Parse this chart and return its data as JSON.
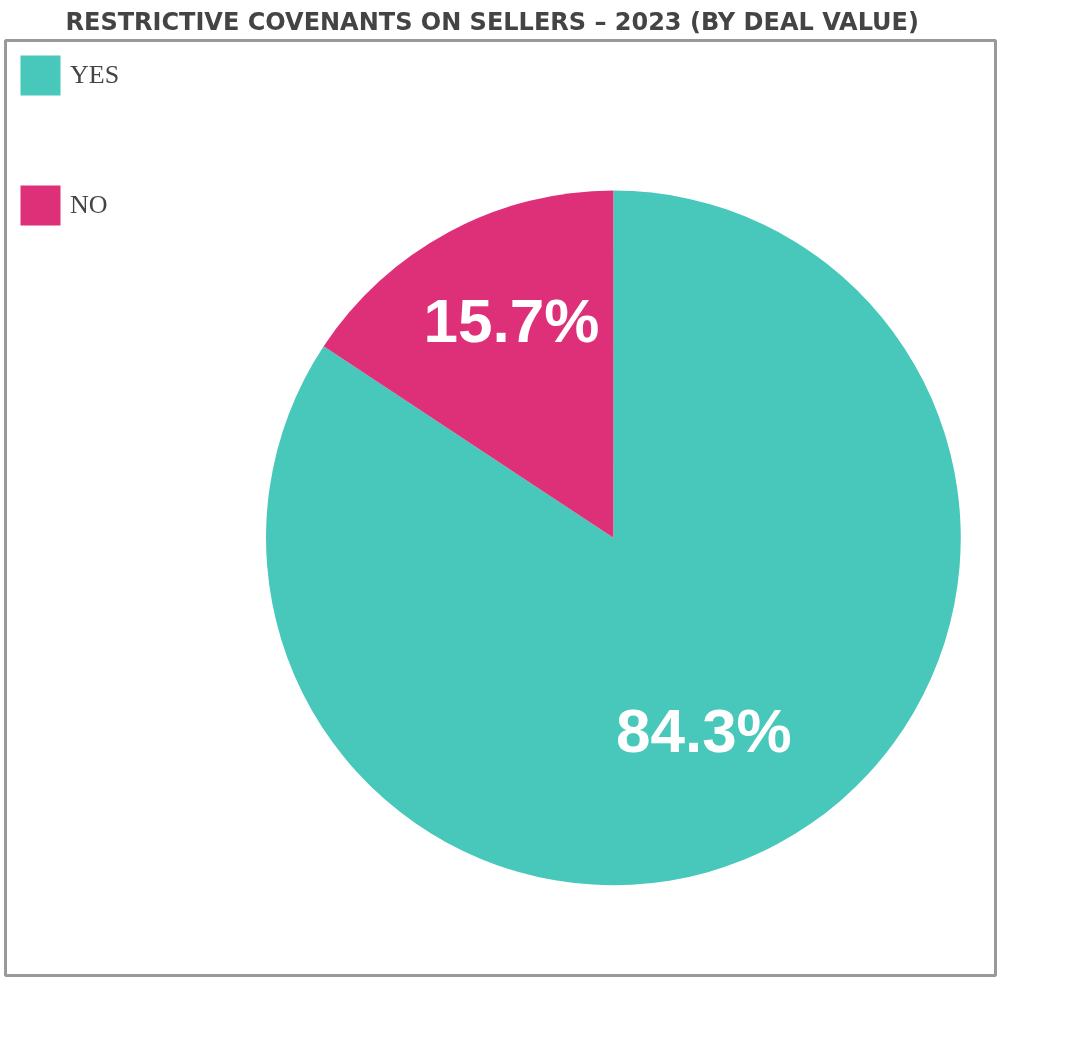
{
  "chart_data": {
    "type": "pie",
    "title": "RESTRICTIVE COVENANTS ON SELLERS – 2023 (BY DEAL VALUE)",
    "categories": [
      "YES",
      "NO"
    ],
    "values": [
      84.3,
      15.7
    ],
    "colors": [
      "#48c7bb",
      "#de3079"
    ],
    "value_labels": [
      "84.3%",
      "15.7%"
    ],
    "legend": "top left"
  }
}
